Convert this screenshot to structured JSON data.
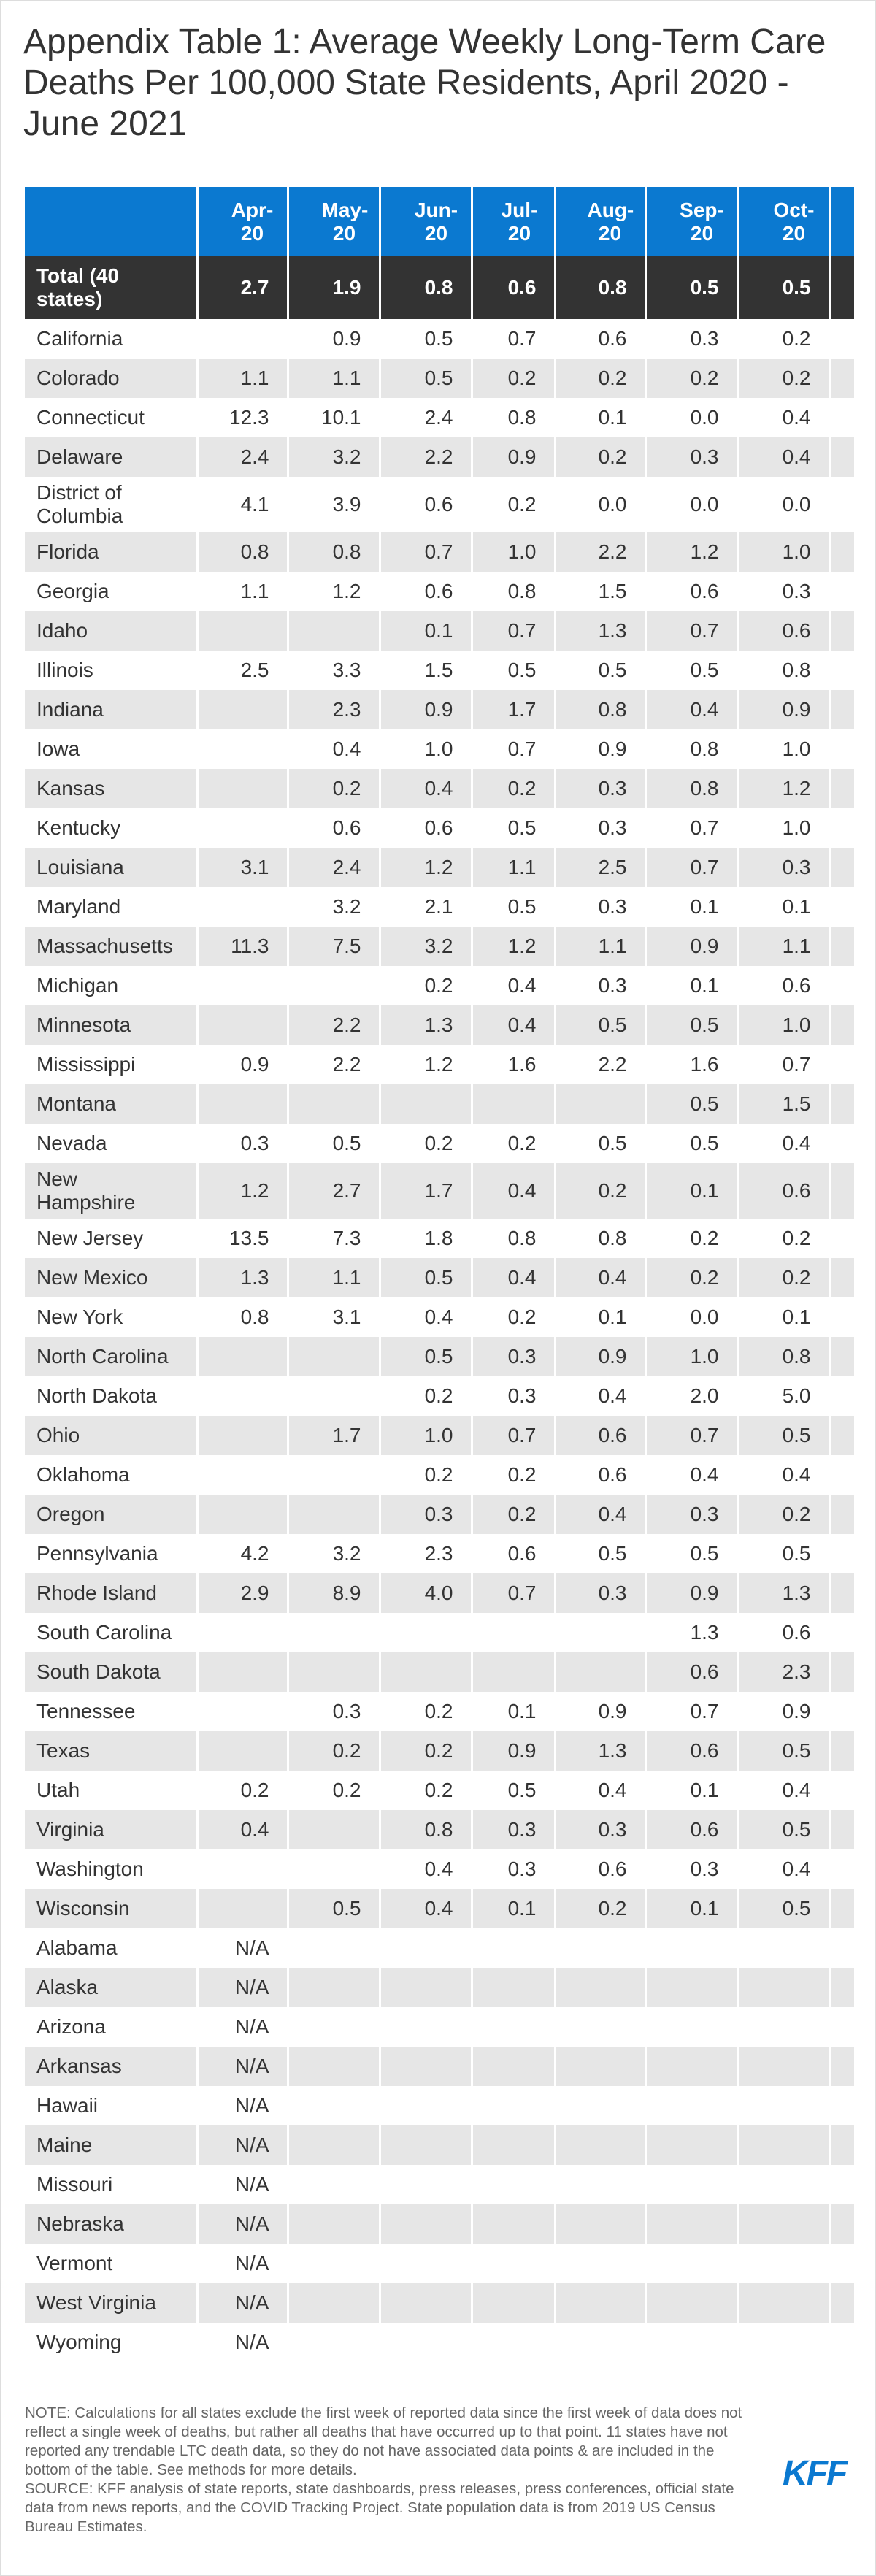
{
  "header": {
    "title": "Appendix Table 1: Average Weekly Long-Term Care Deaths Per 100,000 State Residents, April 2020 - June 2021"
  },
  "table": {
    "columns": [
      "Apr-20",
      "May-20",
      "Jun-20",
      "Jul-20",
      "Aug-20",
      "Sep-20",
      "Oct-20"
    ],
    "total": [
      "Total (40 states)",
      "2.7",
      "1.9",
      "0.8",
      "0.6",
      "0.8",
      "0.5",
      "0.5"
    ],
    "rows": [
      [
        "California",
        null,
        "0.9",
        "0.5",
        "0.7",
        "0.6",
        "0.3",
        "0.2"
      ],
      [
        "Colorado",
        "1.1",
        "1.1",
        "0.5",
        "0.2",
        "0.2",
        "0.2",
        "0.2"
      ],
      [
        "Connecticut",
        "12.3",
        "10.1",
        "2.4",
        "0.8",
        "0.1",
        "0.0",
        "0.4"
      ],
      [
        "Delaware",
        "2.4",
        "3.2",
        "2.2",
        "0.9",
        "0.2",
        "0.3",
        "0.4"
      ],
      [
        "District of Columbia",
        "4.1",
        "3.9",
        "0.6",
        "0.2",
        "0.0",
        "0.0",
        "0.0"
      ],
      [
        "Florida",
        "0.8",
        "0.8",
        "0.7",
        "1.0",
        "2.2",
        "1.2",
        "1.0"
      ],
      [
        "Georgia",
        "1.1",
        "1.2",
        "0.6",
        "0.8",
        "1.5",
        "0.6",
        "0.3"
      ],
      [
        "Idaho",
        null,
        null,
        "0.1",
        "0.7",
        "1.3",
        "0.7",
        "0.6"
      ],
      [
        "Illinois",
        "2.5",
        "3.3",
        "1.5",
        "0.5",
        "0.5",
        "0.5",
        "0.8"
      ],
      [
        "Indiana",
        null,
        "2.3",
        "0.9",
        "1.7",
        "0.8",
        "0.4",
        "0.9"
      ],
      [
        "Iowa",
        null,
        "0.4",
        "1.0",
        "0.7",
        "0.9",
        "0.8",
        "1.0"
      ],
      [
        "Kansas",
        null,
        "0.2",
        "0.4",
        "0.2",
        "0.3",
        "0.8",
        "1.2"
      ],
      [
        "Kentucky",
        null,
        "0.6",
        "0.6",
        "0.5",
        "0.3",
        "0.7",
        "1.0"
      ],
      [
        "Louisiana",
        "3.1",
        "2.4",
        "1.2",
        "1.1",
        "2.5",
        "0.7",
        "0.3"
      ],
      [
        "Maryland",
        null,
        "3.2",
        "2.1",
        "0.5",
        "0.3",
        "0.1",
        "0.1"
      ],
      [
        "Massachusetts",
        "11.3",
        "7.5",
        "3.2",
        "1.2",
        "1.1",
        "0.9",
        "1.1"
      ],
      [
        "Michigan",
        null,
        null,
        "0.2",
        "0.4",
        "0.3",
        "0.1",
        "0.6"
      ],
      [
        "Minnesota",
        null,
        "2.2",
        "1.3",
        "0.4",
        "0.5",
        "0.5",
        "1.0"
      ],
      [
        "Mississippi",
        "0.9",
        "2.2",
        "1.2",
        "1.6",
        "2.2",
        "1.6",
        "0.7"
      ],
      [
        "Montana",
        null,
        null,
        null,
        null,
        null,
        "0.5",
        "1.5"
      ],
      [
        "Nevada",
        "0.3",
        "0.5",
        "0.2",
        "0.2",
        "0.5",
        "0.5",
        "0.4"
      ],
      [
        "New Hampshire",
        "1.2",
        "2.7",
        "1.7",
        "0.4",
        "0.2",
        "0.1",
        "0.6"
      ],
      [
        "New Jersey",
        "13.5",
        "7.3",
        "1.8",
        "0.8",
        "0.8",
        "0.2",
        "0.2"
      ],
      [
        "New Mexico",
        "1.3",
        "1.1",
        "0.5",
        "0.4",
        "0.4",
        "0.2",
        "0.2"
      ],
      [
        "New York",
        "0.8",
        "3.1",
        "0.4",
        "0.2",
        "0.1",
        "0.0",
        "0.1"
      ],
      [
        "North Carolina",
        null,
        null,
        "0.5",
        "0.3",
        "0.9",
        "1.0",
        "0.8"
      ],
      [
        "North Dakota",
        null,
        null,
        "0.2",
        "0.3",
        "0.4",
        "2.0",
        "5.0"
      ],
      [
        "Ohio",
        null,
        "1.7",
        "1.0",
        "0.7",
        "0.6",
        "0.7",
        "0.5"
      ],
      [
        "Oklahoma",
        null,
        null,
        "0.2",
        "0.2",
        "0.6",
        "0.4",
        "0.4"
      ],
      [
        "Oregon",
        null,
        null,
        "0.3",
        "0.2",
        "0.4",
        "0.3",
        "0.2"
      ],
      [
        "Pennsylvania",
        "4.2",
        "3.2",
        "2.3",
        "0.6",
        "0.5",
        "0.5",
        "0.5"
      ],
      [
        "Rhode Island",
        "2.9",
        "8.9",
        "4.0",
        "0.7",
        "0.3",
        "0.9",
        "1.3"
      ],
      [
        "South Carolina",
        null,
        null,
        null,
        null,
        null,
        "1.3",
        "0.6"
      ],
      [
        "South Dakota",
        null,
        null,
        null,
        null,
        null,
        "0.6",
        "2.3"
      ],
      [
        "Tennessee",
        null,
        "0.3",
        "0.2",
        "0.1",
        "0.9",
        "0.7",
        "0.9"
      ],
      [
        "Texas",
        null,
        "0.2",
        "0.2",
        "0.9",
        "1.3",
        "0.6",
        "0.5"
      ],
      [
        "Utah",
        "0.2",
        "0.2",
        "0.2",
        "0.5",
        "0.4",
        "0.1",
        "0.4"
      ],
      [
        "Virginia",
        "0.4",
        null,
        "0.8",
        "0.3",
        "0.3",
        "0.6",
        "0.5"
      ],
      [
        "Washington",
        null,
        null,
        "0.4",
        "0.3",
        "0.6",
        "0.3",
        "0.4"
      ],
      [
        "Wisconsin",
        null,
        "0.5",
        "0.4",
        "0.1",
        "0.2",
        "0.1",
        "0.5"
      ],
      [
        "Alabama",
        "N/A",
        null,
        null,
        null,
        null,
        null,
        null
      ],
      [
        "Alaska",
        "N/A",
        null,
        null,
        null,
        null,
        null,
        null
      ],
      [
        "Arizona",
        "N/A",
        null,
        null,
        null,
        null,
        null,
        null
      ],
      [
        "Arkansas",
        "N/A",
        null,
        null,
        null,
        null,
        null,
        null
      ],
      [
        "Hawaii",
        "N/A",
        null,
        null,
        null,
        null,
        null,
        null
      ],
      [
        "Maine",
        "N/A",
        null,
        null,
        null,
        null,
        null,
        null
      ],
      [
        "Missouri",
        "N/A",
        null,
        null,
        null,
        null,
        null,
        null
      ],
      [
        "Nebraska",
        "N/A",
        null,
        null,
        null,
        null,
        null,
        null
      ],
      [
        "Vermont",
        "N/A",
        null,
        null,
        null,
        null,
        null,
        null
      ],
      [
        "West Virginia",
        "N/A",
        null,
        null,
        null,
        null,
        null,
        null
      ],
      [
        "Wyoming",
        "N/A",
        null,
        null,
        null,
        null,
        null,
        null
      ]
    ]
  },
  "footer": {
    "note": "NOTE: Calculations for all states exclude the first week of reported data since the first week of data does not reflect a single week of deaths, but rather all deaths that have occurred up to that point. 11 states have not reported any trendable LTC death data, so they do not have associated data points & are included in the bottom of the table. See methods for more details.",
    "source": "SOURCE: KFF analysis of state reports, state dashboards, press releases, press conferences, official state data from news reports, and the COVID Tracking Project. State population data is from 2019 US Census Bureau Estimates.",
    "logo": "KFF"
  }
}
